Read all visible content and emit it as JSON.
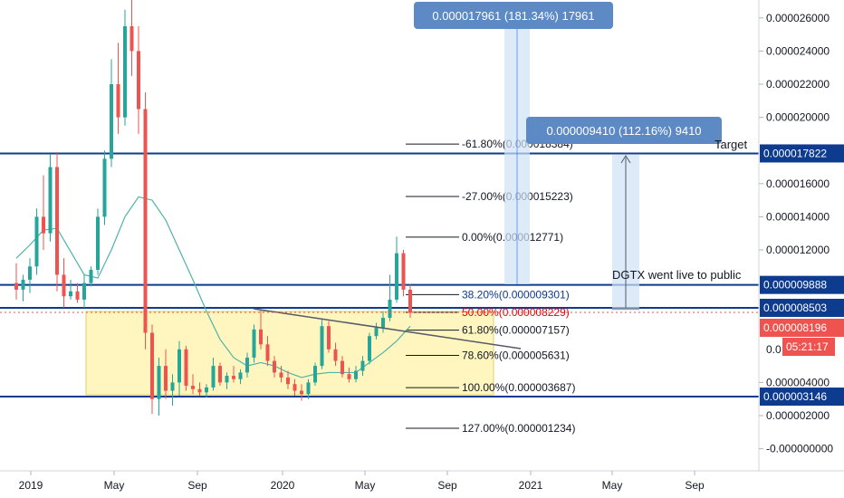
{
  "chart_data": {
    "type": "candlestick",
    "x_ticks": [
      "2019",
      "May",
      "Sep",
      "2020",
      "May",
      "Sep",
      "2021",
      "May",
      "Sep"
    ],
    "y_ticks": [
      "0.000026000",
      "0.000024000",
      "0.000022000",
      "0.000020000",
      "0.000016000",
      "0.000014000",
      "0.000012000",
      "0.000004000",
      "0.000002000",
      "-0.000000000"
    ],
    "ylim": [
      -8e-07,
      2.72e-05
    ],
    "grid": false,
    "horizontal_levels": [
      {
        "price": 1.7822e-05,
        "label": "0.000017822",
        "color": "#0d3b8e"
      },
      {
        "price": 9.888e-06,
        "label": "0.000009888",
        "color": "#0d3b8e"
      },
      {
        "price": 8.503e-06,
        "label": "0.000008503",
        "color": "#0d3b8e"
      },
      {
        "price": 3.146e-06,
        "label": "0.000003146",
        "color": "#0d3b8e"
      }
    ],
    "last_price": {
      "label": "0.000008196",
      "countdown": "05:21:17",
      "color": "#ef5350"
    },
    "partial_tick": "0.0",
    "fib_levels": [
      {
        "label": "-61.80%(0.000018384)",
        "price": 1.8384e-05,
        "color": "#131722"
      },
      {
        "label": "-27.00%(0.000015223)",
        "price": 1.5223e-05,
        "color": "#131722"
      },
      {
        "label": "0.00%(0.000012771)",
        "price": 1.2771e-05,
        "color": "#131722"
      },
      {
        "label": "38.20%(0.000009301)",
        "price": 9.301e-06,
        "color": "#0d3b8e"
      },
      {
        "label": "50.00%(0.000008229)",
        "price": 8.229e-06,
        "color": "#ef0000"
      },
      {
        "label": "61.80%(0.000007157)",
        "price": 7.157e-06,
        "color": "#131722"
      },
      {
        "label": "78.60%(0.000005631)",
        "price": 5.631e-06,
        "color": "#131722"
      },
      {
        "label": "100.00%(0.000003687)",
        "price": 3.687e-06,
        "color": "#131722"
      },
      {
        "label": "127.00%(0.000001234)",
        "price": 1.234e-06,
        "color": "#131722"
      }
    ],
    "measures": [
      {
        "text": "0.000017961 (181.34%) 17961"
      },
      {
        "text": "0.000009410 (112.16%) 9410"
      }
    ],
    "annotations": [
      {
        "text": "Target"
      },
      {
        "text": "DGTX went live to public"
      }
    ],
    "candles": [
      {
        "t": -1.0,
        "o": 10.0,
        "h": 11.2,
        "l": 9.0,
        "c": 9.6
      },
      {
        "t": -0.5,
        "o": 9.6,
        "h": 10.5,
        "l": 8.9,
        "c": 10.2
      },
      {
        "t": 0.0,
        "o": 10.2,
        "h": 11.5,
        "l": 9.4,
        "c": 11.0
      },
      {
        "t": 0.5,
        "o": 11.0,
        "h": 14.5,
        "l": 10.5,
        "c": 14.0
      },
      {
        "t": 1.0,
        "o": 14.0,
        "h": 16.5,
        "l": 12.0,
        "c": 13.0
      },
      {
        "t": 1.5,
        "o": 13.0,
        "h": 17.8,
        "l": 12.5,
        "c": 17.0
      },
      {
        "t": 2.0,
        "o": 17.0,
        "h": 17.9,
        "l": 9.5,
        "c": 10.5
      },
      {
        "t": 2.5,
        "o": 10.5,
        "h": 11.5,
        "l": 8.5,
        "c": 9.2
      },
      {
        "t": 3.0,
        "o": 9.2,
        "h": 10.2,
        "l": 9.0,
        "c": 9.5
      },
      {
        "t": 3.5,
        "o": 9.5,
        "h": 10.0,
        "l": 8.8,
        "c": 9.0
      },
      {
        "t": 4.0,
        "o": 9.0,
        "h": 10.5,
        "l": 8.5,
        "c": 10.0
      },
      {
        "t": 4.5,
        "o": 10.0,
        "h": 11.0,
        "l": 9.8,
        "c": 10.8
      },
      {
        "t": 5.0,
        "o": 10.8,
        "h": 14.5,
        "l": 10.5,
        "c": 14.0
      },
      {
        "t": 5.5,
        "o": 14.0,
        "h": 18.0,
        "l": 13.5,
        "c": 17.5
      },
      {
        "t": 6.0,
        "o": 17.5,
        "h": 23.5,
        "l": 17.0,
        "c": 22.0
      },
      {
        "t": 6.5,
        "o": 22.0,
        "h": 24.5,
        "l": 19.0,
        "c": 20.0
      },
      {
        "t": 7.0,
        "o": 20.0,
        "h": 26.5,
        "l": 19.5,
        "c": 25.5
      },
      {
        "t": 7.5,
        "o": 25.5,
        "h": 27.2,
        "l": 22.5,
        "c": 24.0
      },
      {
        "t": 8.0,
        "o": 24.0,
        "h": 25.5,
        "l": 19.0,
        "c": 20.5
      },
      {
        "t": 8.5,
        "o": 20.5,
        "h": 21.5,
        "l": 6.0,
        "c": 7.0
      },
      {
        "t": 9.0,
        "o": 7.0,
        "h": 7.5,
        "l": 2.1,
        "c": 3.0
      },
      {
        "t": 9.5,
        "o": 3.0,
        "h": 5.5,
        "l": 2.0,
        "c": 5.0
      },
      {
        "t": 10.0,
        "o": 5.0,
        "h": 6.0,
        "l": 3.0,
        "c": 3.5
      },
      {
        "t": 10.5,
        "o": 3.5,
        "h": 4.5,
        "l": 2.6,
        "c": 4.0
      },
      {
        "t": 11.0,
        "o": 4.0,
        "h": 6.5,
        "l": 3.2,
        "c": 6.0
      },
      {
        "t": 11.5,
        "o": 6.0,
        "h": 6.2,
        "l": 3.5,
        "c": 3.8
      },
      {
        "t": 12.0,
        "o": 3.8,
        "h": 4.5,
        "l": 3.3,
        "c": 3.6
      },
      {
        "t": 12.5,
        "o": 3.6,
        "h": 4.0,
        "l": 3.2,
        "c": 3.4
      },
      {
        "t": 13.0,
        "o": 3.4,
        "h": 3.9,
        "l": 3.1,
        "c": 3.7
      },
      {
        "t": 13.5,
        "o": 3.7,
        "h": 5.5,
        "l": 3.5,
        "c": 5.0
      },
      {
        "t": 14.0,
        "o": 5.0,
        "h": 5.2,
        "l": 3.8,
        "c": 4.0
      },
      {
        "t": 14.5,
        "o": 4.0,
        "h": 4.6,
        "l": 3.6,
        "c": 4.4
      },
      {
        "t": 15.0,
        "o": 4.4,
        "h": 5.0,
        "l": 4.0,
        "c": 4.2
      },
      {
        "t": 15.5,
        "o": 4.2,
        "h": 4.8,
        "l": 3.9,
        "c": 4.6
      },
      {
        "t": 16.0,
        "o": 4.6,
        "h": 5.8,
        "l": 4.3,
        "c": 5.5
      },
      {
        "t": 16.5,
        "o": 5.5,
        "h": 7.5,
        "l": 5.2,
        "c": 7.2
      },
      {
        "t": 17.0,
        "o": 7.2,
        "h": 8.4,
        "l": 6.0,
        "c": 6.3
      },
      {
        "t": 17.5,
        "o": 6.3,
        "h": 6.8,
        "l": 5.0,
        "c": 5.3
      },
      {
        "t": 18.0,
        "o": 5.3,
        "h": 5.6,
        "l": 4.3,
        "c": 4.6
      },
      {
        "t": 18.5,
        "o": 4.6,
        "h": 5.0,
        "l": 4.0,
        "c": 4.3
      },
      {
        "t": 19.0,
        "o": 4.3,
        "h": 4.7,
        "l": 3.6,
        "c": 3.9
      },
      {
        "t": 19.5,
        "o": 3.9,
        "h": 4.2,
        "l": 3.2,
        "c": 3.5
      },
      {
        "t": 20.0,
        "o": 3.5,
        "h": 3.9,
        "l": 2.9,
        "c": 3.3
      },
      {
        "t": 20.5,
        "o": 3.3,
        "h": 4.2,
        "l": 3.0,
        "c": 4.0
      },
      {
        "t": 21.0,
        "o": 4.0,
        "h": 5.2,
        "l": 3.8,
        "c": 5.0
      },
      {
        "t": 21.5,
        "o": 5.0,
        "h": 7.8,
        "l": 4.8,
        "c": 7.4
      },
      {
        "t": 22.0,
        "o": 7.4,
        "h": 7.7,
        "l": 5.8,
        "c": 6.0
      },
      {
        "t": 22.5,
        "o": 6.0,
        "h": 6.4,
        "l": 5.0,
        "c": 5.3
      },
      {
        "t": 23.0,
        "o": 5.3,
        "h": 5.6,
        "l": 4.3,
        "c": 4.5
      },
      {
        "t": 23.5,
        "o": 4.5,
        "h": 4.9,
        "l": 4.0,
        "c": 4.2
      },
      {
        "t": 24.0,
        "o": 4.2,
        "h": 5.0,
        "l": 4.0,
        "c": 4.7
      },
      {
        "t": 24.5,
        "o": 4.7,
        "h": 5.6,
        "l": 4.4,
        "c": 5.3
      },
      {
        "t": 25.0,
        "o": 5.3,
        "h": 7.0,
        "l": 5.1,
        "c": 6.8
      },
      {
        "t": 25.5,
        "o": 6.8,
        "h": 7.6,
        "l": 6.6,
        "c": 7.3
      },
      {
        "t": 26.0,
        "o": 7.3,
        "h": 8.3,
        "l": 7.0,
        "c": 7.9
      },
      {
        "t": 26.5,
        "o": 7.9,
        "h": 10.5,
        "l": 7.7,
        "c": 9.0
      },
      {
        "t": 27.0,
        "o": 9.0,
        "h": 12.8,
        "l": 8.8,
        "c": 11.8
      },
      {
        "t": 27.5,
        "o": 11.8,
        "h": 12.0,
        "l": 9.2,
        "c": 9.6
      },
      {
        "t": 28.0,
        "o": 9.6,
        "h": 9.9,
        "l": 7.9,
        "c": 8.2
      }
    ],
    "series": [
      {
        "points": [
          [
            -1.0,
            11.5
          ],
          [
            0.0,
            12.3
          ],
          [
            1.0,
            13.2
          ],
          [
            2.0,
            13.3
          ],
          [
            3.0,
            11.9
          ],
          [
            4.0,
            10.5
          ],
          [
            5.0,
            10.3
          ],
          [
            6.0,
            12.0
          ],
          [
            7.0,
            14.0
          ],
          [
            8.0,
            15.2
          ],
          [
            9.0,
            15.0
          ],
          [
            10.0,
            13.8
          ],
          [
            11.0,
            12.0
          ],
          [
            12.0,
            10.2
          ],
          [
            13.0,
            8.3
          ],
          [
            14.0,
            6.6
          ],
          [
            15.0,
            5.5
          ],
          [
            16.0,
            5.0
          ],
          [
            17.0,
            5.2
          ],
          [
            18.0,
            5.0
          ],
          [
            19.0,
            4.6
          ],
          [
            20.0,
            4.3
          ],
          [
            21.0,
            4.5
          ],
          [
            22.0,
            4.6
          ],
          [
            23.0,
            4.6
          ],
          [
            24.0,
            4.6
          ],
          [
            25.0,
            5.2
          ],
          [
            26.0,
            5.8
          ],
          [
            27.0,
            6.5
          ],
          [
            28.0,
            7.4
          ]
        ]
      }
    ]
  }
}
